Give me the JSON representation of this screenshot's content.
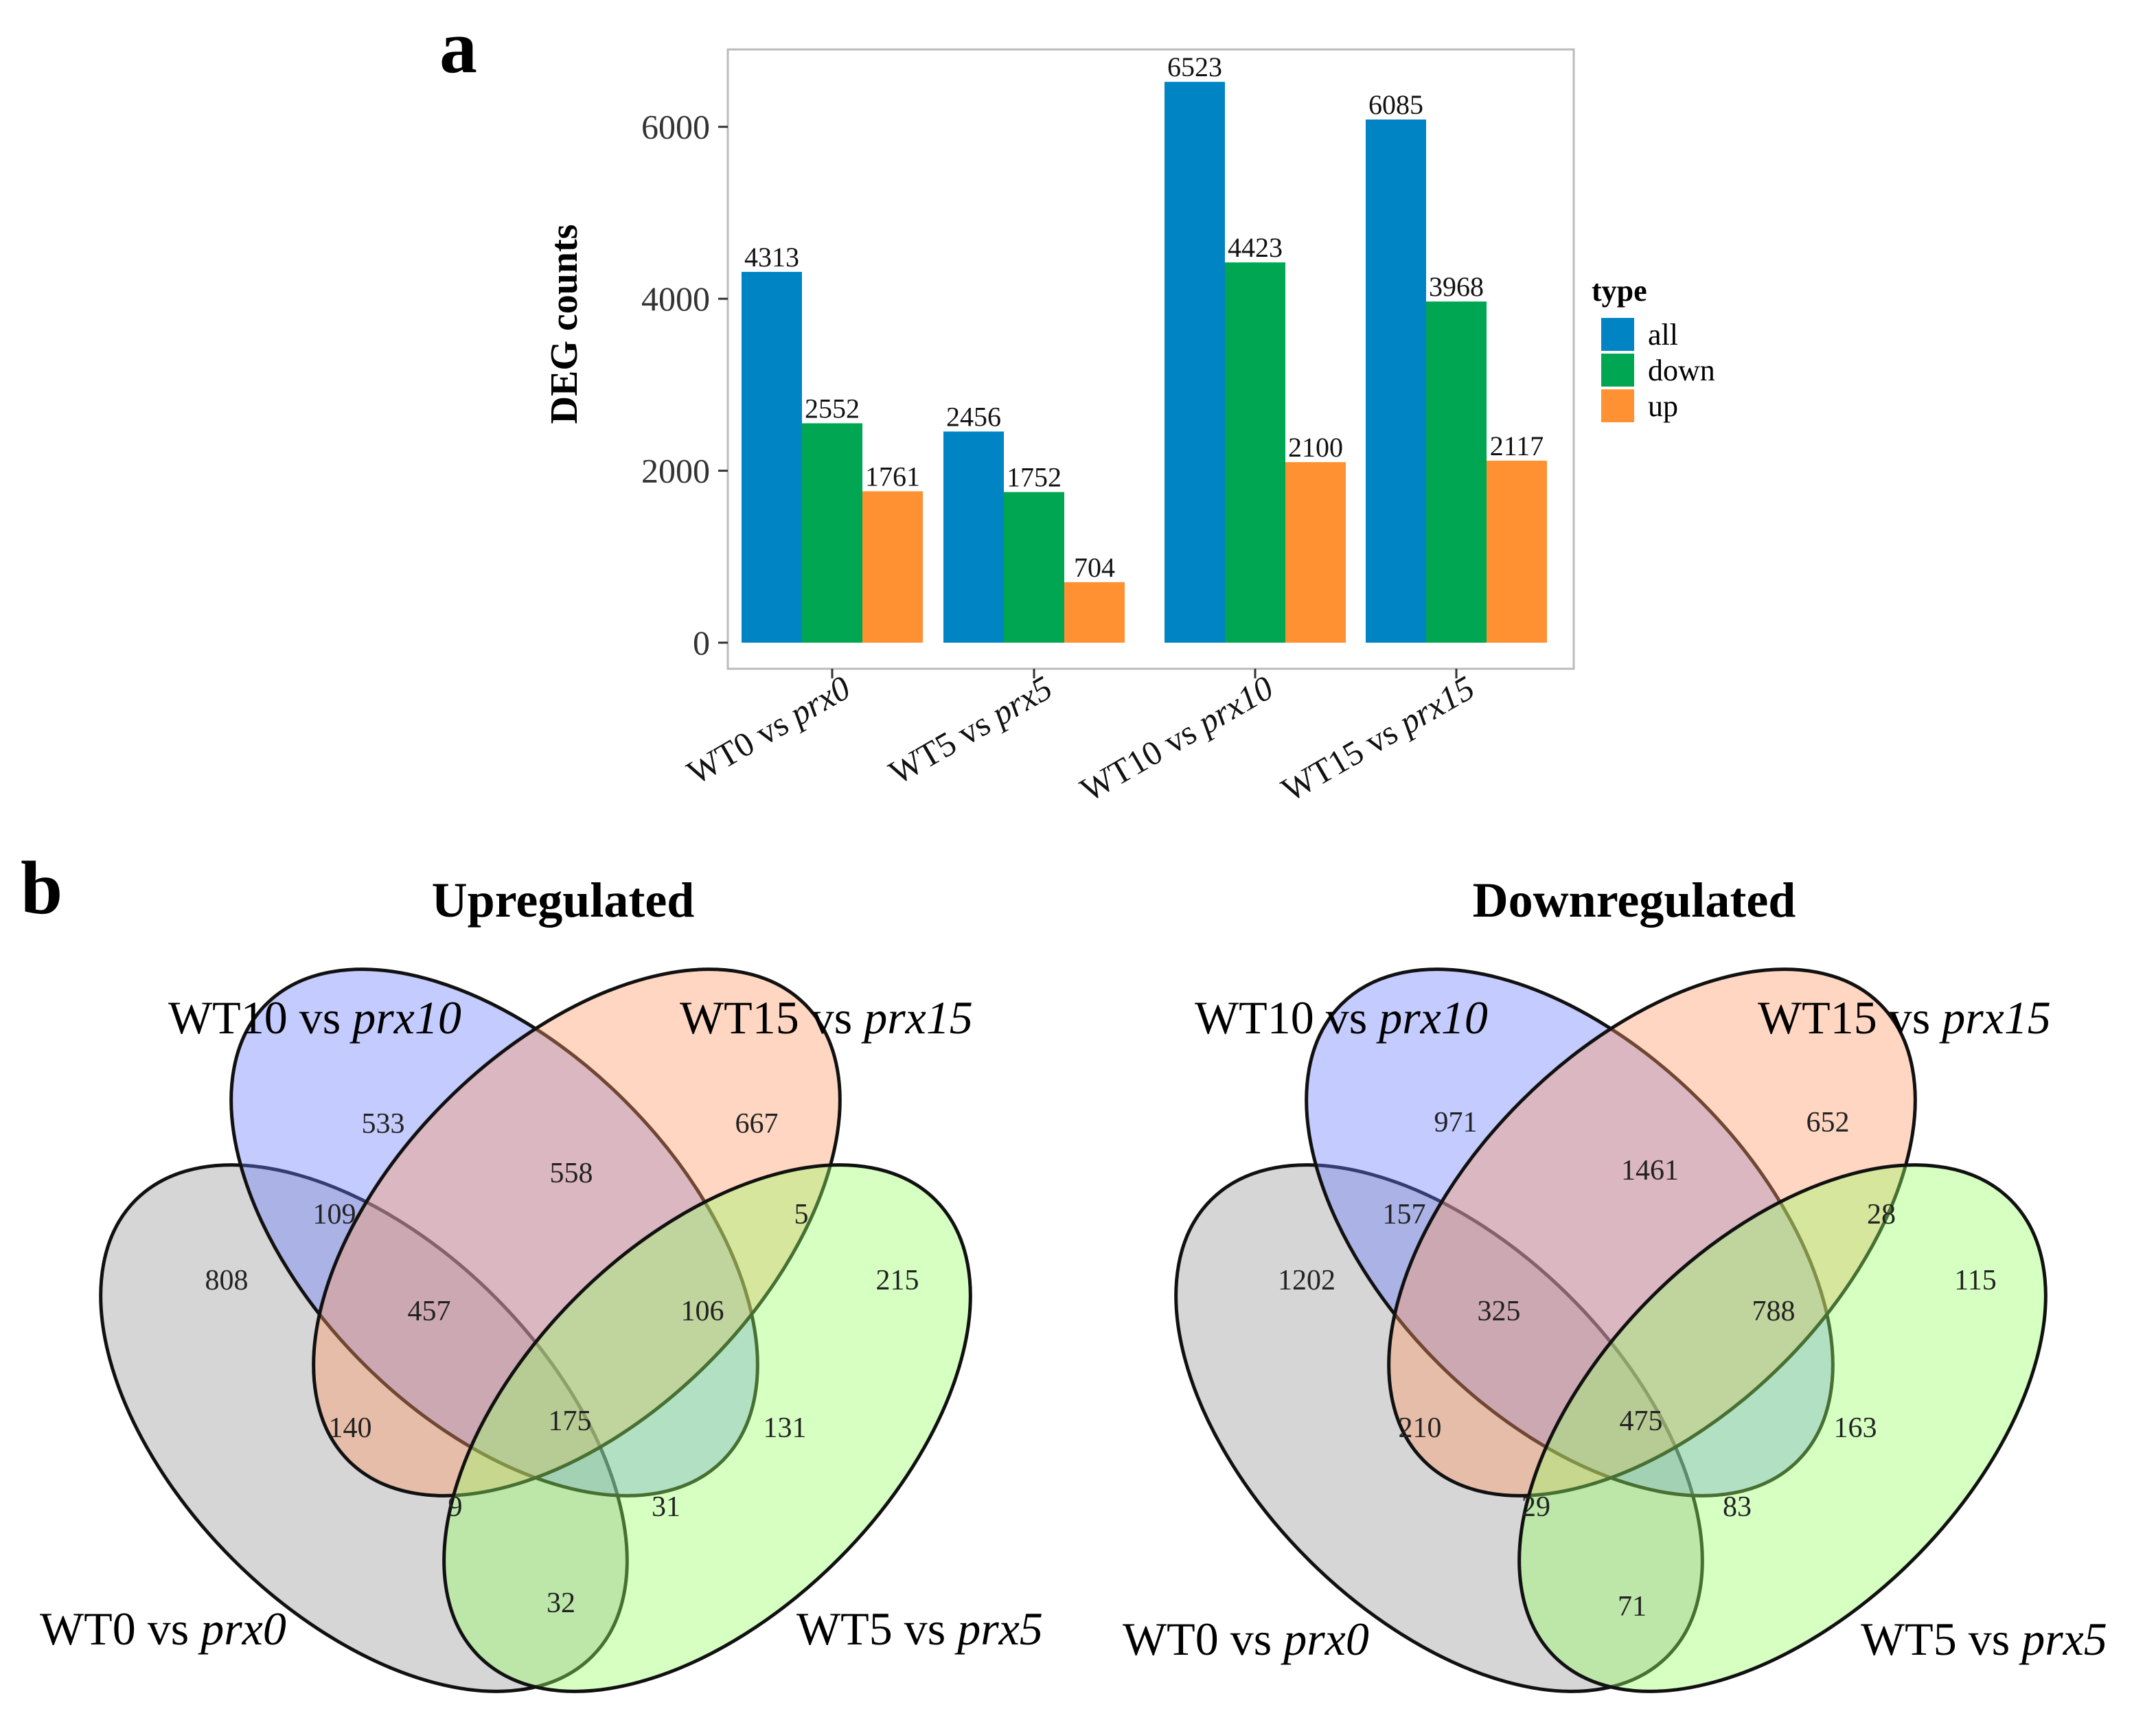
{
  "panels": {
    "a": "a",
    "b": "b"
  },
  "chart_data": [
    {
      "type": "bar",
      "title": "",
      "xlabel": "",
      "ylabel": "DEG  counts",
      "ylim": [
        0,
        6900
      ],
      "yticks": [
        0,
        2000,
        4000,
        6000
      ],
      "categories": [
        {
          "prefix": "WT0 vs ",
          "italic": "prx0"
        },
        {
          "prefix": "WT5 vs ",
          "italic": "prx5"
        },
        {
          "prefix": "WT10 vs ",
          "italic": "prx10"
        },
        {
          "prefix": "WT15 vs ",
          "italic": "prx15"
        }
      ],
      "series": [
        {
          "name": "all",
          "color": "#0084C4",
          "values": [
            4313,
            2456,
            6523,
            6085
          ]
        },
        {
          "name": "down",
          "color": "#00A651",
          "values": [
            2552,
            1752,
            4423,
            3968
          ]
        },
        {
          "name": "up",
          "color": "#FF9133",
          "values": [
            1761,
            704,
            2100,
            2117
          ]
        }
      ],
      "legend": {
        "title": "type",
        "position": "right"
      }
    },
    {
      "type": "venn",
      "title": "Upregulated",
      "sets": [
        {
          "prefix": "WT0 vs ",
          "italic": "prx0"
        },
        {
          "prefix": "WT10 vs ",
          "italic": "prx10"
        },
        {
          "prefix": "WT15 vs ",
          "italic": "prx15"
        },
        {
          "prefix": "WT5 vs ",
          "italic": "prx5"
        }
      ],
      "regions": [
        {
          "sets": "WT0 only",
          "value": 808
        },
        {
          "sets": "WT10 only",
          "value": 533
        },
        {
          "sets": "WT15 only",
          "value": 667
        },
        {
          "sets": "WT5 only",
          "value": 215
        },
        {
          "sets": "WT0 & WT10",
          "value": 109
        },
        {
          "sets": "WT10 & WT15",
          "value": 558
        },
        {
          "sets": "WT15 & WT5",
          "value": 5
        },
        {
          "sets": "WT0 & WT10 & WT15",
          "value": 457
        },
        {
          "sets": "WT10 & WT15 & WT5",
          "value": 106
        },
        {
          "sets": "WT0 & WT15",
          "value": 140
        },
        {
          "sets": "all four",
          "value": 175
        },
        {
          "sets": "WT10 & WT5",
          "value": 131
        },
        {
          "sets": "WT0 & WT15 & WT5",
          "value": 9
        },
        {
          "sets": "WT0 & WT10 & WT5",
          "value": 31
        },
        {
          "sets": "WT0 & WT5",
          "value": 32
        }
      ]
    },
    {
      "type": "venn",
      "title": "Downregulated",
      "sets": [
        {
          "prefix": "WT0 vs ",
          "italic": "prx0"
        },
        {
          "prefix": "WT10 vs ",
          "italic": "prx10"
        },
        {
          "prefix": "WT15 vs ",
          "italic": "prx15"
        },
        {
          "prefix": "WT5 vs ",
          "italic": "prx5"
        }
      ],
      "regions": [
        {
          "sets": "WT0 only",
          "value": 1202
        },
        {
          "sets": "WT10 only",
          "value": 971
        },
        {
          "sets": "WT15 only",
          "value": 652
        },
        {
          "sets": "WT5 only",
          "value": 115
        },
        {
          "sets": "WT0 & WT10",
          "value": 157
        },
        {
          "sets": "WT10 & WT15",
          "value": 1461
        },
        {
          "sets": "WT15 & WT5",
          "value": 28
        },
        {
          "sets": "WT0 & WT10 & WT15",
          "value": 325
        },
        {
          "sets": "WT10 & WT15 & WT5",
          "value": 788
        },
        {
          "sets": "WT0 & WT15",
          "value": 210
        },
        {
          "sets": "all four",
          "value": 475
        },
        {
          "sets": "WT10 & WT5",
          "value": 163
        },
        {
          "sets": "WT0 & WT15 & WT5",
          "value": 29
        },
        {
          "sets": "WT0 & WT10 & WT5",
          "value": 83
        },
        {
          "sets": "WT0 & WT5",
          "value": 71
        }
      ]
    }
  ]
}
